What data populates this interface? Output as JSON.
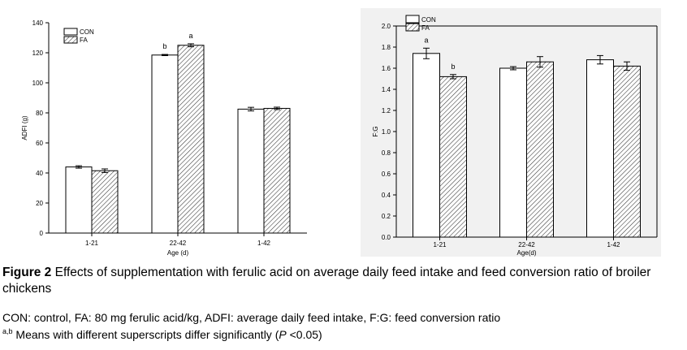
{
  "chart_data": [
    {
      "type": "bar",
      "title": "",
      "xlabel": "Age (d)",
      "ylabel": "ADFI (g)",
      "ylim": [
        0,
        140
      ],
      "yticks": [
        0,
        20,
        40,
        60,
        80,
        100,
        120,
        140
      ],
      "categories": [
        "1-21",
        "22-42",
        "1-42"
      ],
      "legend": [
        "CON",
        "FA"
      ],
      "legend_position": "top-left",
      "series": [
        {
          "name": "CON",
          "values": [
            44,
            118.5,
            82.5
          ],
          "errors": [
            0.8,
            0.4,
            1.2
          ],
          "labels": [
            "",
            "b",
            ""
          ]
        },
        {
          "name": "FA",
          "values": [
            41.5,
            125,
            83
          ],
          "errors": [
            1.2,
            1.0,
            0.8
          ],
          "labels": [
            "",
            "a",
            ""
          ]
        }
      ]
    },
    {
      "type": "bar",
      "title": "",
      "xlabel": "Age(d)",
      "ylabel": "F:G",
      "ylim": [
        0,
        2.0
      ],
      "yticks": [
        "0.0",
        "0.2",
        "0.4",
        "0.6",
        "0.8",
        "1.0",
        "1.2",
        "1.4",
        "1.6",
        "1.8",
        "2.0"
      ],
      "categories": [
        "1-21",
        "22-42",
        "1-42"
      ],
      "legend": [
        "CON",
        "FA"
      ],
      "legend_position": "top-left",
      "series": [
        {
          "name": "CON",
          "values": [
            1.74,
            1.6,
            1.68
          ],
          "errors": [
            0.05,
            0.015,
            0.04
          ],
          "labels": [
            "a",
            "",
            ""
          ]
        },
        {
          "name": "FA",
          "values": [
            1.52,
            1.66,
            1.62
          ],
          "errors": [
            0.02,
            0.05,
            0.04
          ],
          "labels": [
            "b",
            "",
            ""
          ]
        }
      ]
    }
  ],
  "caption": {
    "label": "Figure 2",
    "text": " Effects of supplementation with ferulic acid on average daily feed intake and feed conversion ratio of broiler chickens"
  },
  "notes": {
    "abbreviations": "CON: control, FA: 80 mg ferulic acid/kg, ADFI: average daily feed intake, F:G: feed conversion ratio",
    "superscript": "a,b",
    "significance_text": " Means with different superscripts differ significantly (",
    "p_symbol": "P",
    "p_threshold": " <0.05)"
  }
}
